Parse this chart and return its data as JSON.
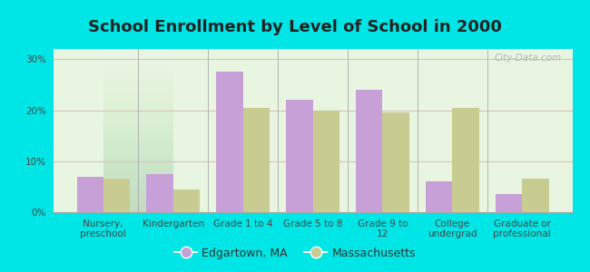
{
  "title": "School Enrollment by Level of School in 2000",
  "categories": [
    "Nursery,\npreschool",
    "Kindergarten",
    "Grade 1 to 4",
    "Grade 5 to 8",
    "Grade 9 to\n12",
    "College\nundergrad",
    "Graduate or\nprofessional"
  ],
  "edgartown_values": [
    7.0,
    7.5,
    27.5,
    22.0,
    24.0,
    6.0,
    3.5
  ],
  "massachusetts_values": [
    6.5,
    4.5,
    20.5,
    20.0,
    19.5,
    20.5,
    6.5
  ],
  "edgartown_color": "#c8a0d8",
  "massachusetts_color": "#c8cc90",
  "background_color": "#00e5e5",
  "plot_bg_color": "#e8f5e0",
  "title_fontsize": 13,
  "tick_label_fontsize": 7.5,
  "legend_fontsize": 9,
  "ylim": [
    0,
    32
  ],
  "yticks": [
    0,
    10,
    20,
    30
  ],
  "ytick_labels": [
    "0%",
    "10%",
    "20%",
    "30%"
  ],
  "watermark": "City-Data.com",
  "legend_label_edgartown": "Edgartown, MA",
  "legend_label_massachusetts": "Massachusetts",
  "bar_width": 0.38
}
